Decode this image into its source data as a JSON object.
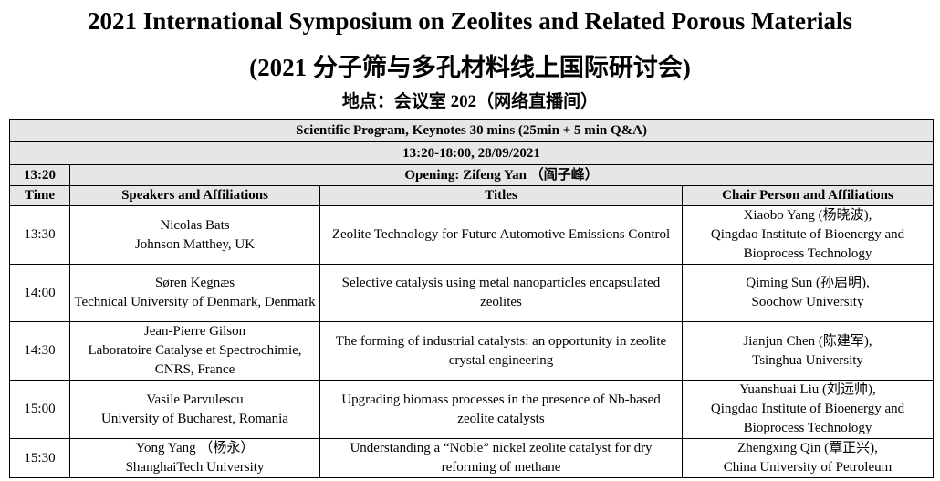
{
  "title_line1": "2021 International Symposium on Zeolites and Related Porous Materials",
  "title_line2": "(2021 分子筛与多孔材料线上国际研讨会)",
  "venue": "地点：会议室 202（网络直播间）",
  "program": {
    "heading": "Scientific Program, Keynotes 30 mins (25min + 5 min Q&A)",
    "date_time": "13:20-18:00, 28/09/2021",
    "opening_time": "13:20",
    "opening": "Opening: Zifeng Yan （阎子峰）",
    "columns": [
      "Time",
      "Speakers and Affiliations",
      "Titles",
      "Chair Person and Affiliations"
    ],
    "rows": [
      {
        "time": "13:30",
        "speaker": [
          "Nicolas Bats",
          "Johnson Matthey, UK"
        ],
        "title": "Zeolite Technology for Future Automotive Emissions Control",
        "chair": [
          "Xiaobo Yang (杨晓波),",
          "Qingdao Institute of Bioenergy and Bioprocess Technology"
        ]
      },
      {
        "time": "14:00",
        "speaker": [
          "Søren Kegnæs",
          "Technical University of Denmark, Denmark"
        ],
        "title": "Selective catalysis using metal nanoparticles encapsulated zeolites",
        "chair": [
          "Qiming Sun (孙启明),",
          "Soochow University"
        ]
      },
      {
        "time": "14:30",
        "speaker": [
          "Jean-Pierre Gilson",
          "Laboratoire Catalyse et Spectrochimie, CNRS, France"
        ],
        "title": "The forming of industrial catalysts: an opportunity in zeolite crystal engineering",
        "chair": [
          "Jianjun Chen (陈建军),",
          "Tsinghua University"
        ]
      },
      {
        "time": "15:00",
        "speaker": [
          "Vasile Parvulescu",
          "University of Bucharest, Romania"
        ],
        "title": "Upgrading biomass processes in the presence of Nb-based zeolite catalysts",
        "chair": [
          "Yuanshuai Liu (刘远帅),",
          "Qingdao Institute of Bioenergy and Bioprocess Technology"
        ]
      },
      {
        "time": "15:30",
        "speaker": [
          "Yong Yang （杨永）",
          "ShanghaiTech University"
        ],
        "title": "Understanding a “Noble” nickel zeolite catalyst for dry reforming of methane",
        "chair": [
          "Zhengxing Qin (覃正兴),",
          "China University of Petroleum"
        ]
      }
    ]
  }
}
